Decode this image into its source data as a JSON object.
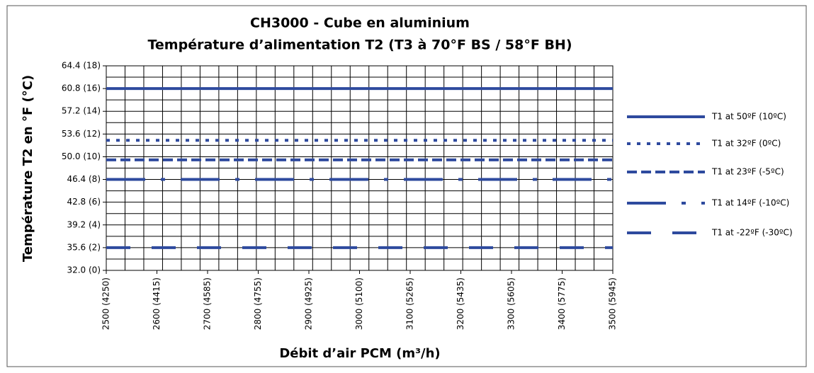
{
  "chart_data": {
    "type": "line",
    "title": "CH3000 - Cube en aluminium",
    "subtitle": "Température d’alimentation T2 (T3 à 70°F BS / 58°F BH)",
    "x_label": "Débit d’air PCM (m³/h)",
    "y_label": "Température T2 en °F (°C)",
    "x": [
      2500,
      3500
    ],
    "xlim": [
      2500,
      3500
    ],
    "xticks": [
      {
        "value": 2500,
        "label": "2500 (4250)"
      },
      {
        "value": 2600,
        "label": "2600 (4415)"
      },
      {
        "value": 2700,
        "label": "2700 (4585)"
      },
      {
        "value": 2800,
        "label": "2800 (4755)"
      },
      {
        "value": 2900,
        "label": "2900 (4925)"
      },
      {
        "value": 3000,
        "label": "3000 (5100)"
      },
      {
        "value": 3100,
        "label": "3100 (5265)"
      },
      {
        "value": 3200,
        "label": "3200 (5435)"
      },
      {
        "value": 3300,
        "label": "3300 (5605)"
      },
      {
        "value": 3400,
        "label": "3400 (5775)"
      },
      {
        "value": 3500,
        "label": "3500 (5945)"
      }
    ],
    "ylim": [
      32.0,
      64.4
    ],
    "yticks": [
      {
        "value": 32.0,
        "label": "32.0 (0)"
      },
      {
        "value": 35.6,
        "label": "35.6 (2)"
      },
      {
        "value": 39.2,
        "label": "39.2 (4)"
      },
      {
        "value": 42.8,
        "label": "42.8 (6)"
      },
      {
        "value": 46.4,
        "label": "46.4 (8)"
      },
      {
        "value": 50.0,
        "label": "50.0 (10)"
      },
      {
        "value": 53.6,
        "label": "53.6 (12)"
      },
      {
        "value": 57.2,
        "label": "57.2 (14)"
      },
      {
        "value": 60.8,
        "label": "60.8 (16)"
      },
      {
        "value": 64.4,
        "label": "64.4 (18)"
      }
    ],
    "grid": true,
    "legend": "right",
    "series": [
      {
        "name": "T1 at 50ºF (10ºC)",
        "color": "#2e4a9e",
        "style": "solid",
        "values": [
          60.8,
          60.8
        ]
      },
      {
        "name": "T1 at 32ºF (0ºC)",
        "color": "#2e4a9e",
        "style": "dotted",
        "values": [
          52.6,
          52.6
        ]
      },
      {
        "name": "T1 at 23ºF (-5ºC)",
        "color": "#2e4a9e",
        "style": "dashed",
        "values": [
          49.5,
          49.5
        ]
      },
      {
        "name": "T1 at 14ºF (-10ºC)",
        "color": "#2e4a9e",
        "style": "dash-dot",
        "values": [
          46.4,
          46.4
        ]
      },
      {
        "name": "T1 at -22ºF (-30ºC)",
        "color": "#2e4a9e",
        "style": "long-dash",
        "values": [
          35.6,
          35.6
        ]
      }
    ]
  }
}
